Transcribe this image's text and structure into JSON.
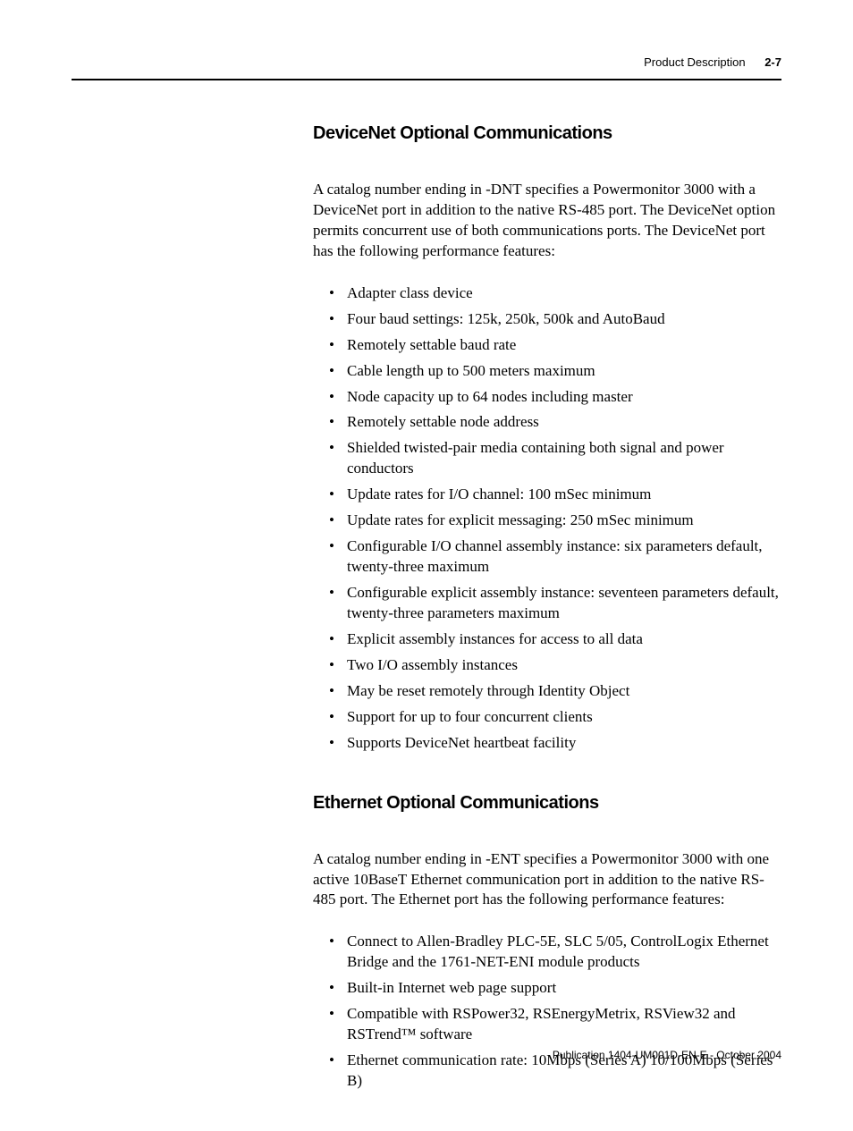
{
  "header": {
    "section_name": "Product Description",
    "page_label": "2-7"
  },
  "section1": {
    "heading": "DeviceNet Optional Communications",
    "paragraph": "A catalog number ending in -DNT specifies a Powermonitor 3000 with a DeviceNet port in addition to the native RS-485 port. The DeviceNet option permits concurrent use of both communications ports. The DeviceNet port has the following performance features:",
    "bullets": [
      "Adapter class device",
      "Four baud settings: 125k, 250k, 500k and AutoBaud",
      "Remotely settable baud rate",
      "Cable length up to 500 meters maximum",
      "Node capacity up to 64 nodes including master",
      "Remotely settable node address",
      "Shielded twisted-pair media containing both signal and power conductors",
      "Update rates for I/O channel: 100 mSec minimum",
      "Update rates for explicit messaging: 250 mSec minimum",
      "Configurable I/O channel assembly instance: six parameters default, twenty-three maximum",
      "Configurable explicit assembly instance: seventeen parameters default, twenty-three parameters maximum",
      "Explicit assembly instances for access to all data",
      "Two I/O assembly instances",
      "May be reset remotely through Identity Object",
      "Support for up to four concurrent clients",
      "Supports DeviceNet heartbeat facility"
    ]
  },
  "section2": {
    "heading": "Ethernet Optional Communications",
    "paragraph": "A catalog number ending in -ENT specifies a Powermonitor 3000 with one active 10BaseT Ethernet communication port in addition to the native RS-485 port. The Ethernet port has the following performance features:",
    "bullets": [
      "Connect to Allen-Bradley PLC-5E, SLC 5/05, ControlLogix Ethernet Bridge and the 1761-NET-ENI module products",
      "Built-in Internet web page support",
      "Compatible with RSPower32, RSEnergyMetrix, RSView32 and RSTrend™ software",
      "Ethernet communication rate: 10Mbps (Series A) 10/100Mbps (Series B)"
    ]
  },
  "footer": {
    "publication": "Publication 1404-UM001D-EN-E - October 2004"
  }
}
